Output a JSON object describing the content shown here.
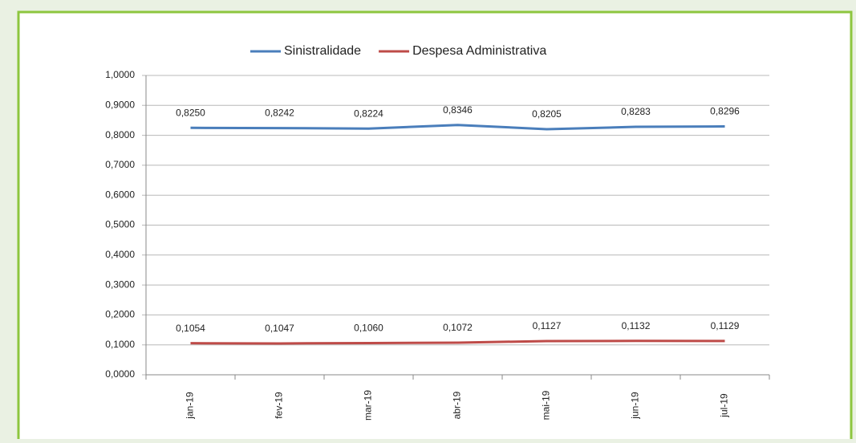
{
  "chart_data": {
    "type": "line",
    "categories": [
      "jan-19",
      "fev-19",
      "mar-19",
      "abr-19",
      "mai-19",
      "jun-19",
      "jul-19"
    ],
    "series": [
      {
        "name": "Sinistralidade",
        "color": "#4a7ebb",
        "values": [
          0.825,
          0.8242,
          0.8224,
          0.8346,
          0.8205,
          0.8283,
          0.8296
        ],
        "value_labels": [
          "0,8250",
          "0,8242",
          "0,8224",
          "0,8346",
          "0,8205",
          "0,8283",
          "0,8296"
        ]
      },
      {
        "name": "Despesa Administrativa",
        "color": "#be4b48",
        "values": [
          0.1054,
          0.1047,
          0.106,
          0.1072,
          0.1127,
          0.1132,
          0.1129
        ],
        "value_labels": [
          "0,1054",
          "0,1047",
          "0,1060",
          "0,1072",
          "0,1127",
          "0,1132",
          "0,1129"
        ]
      }
    ],
    "ylim": [
      0,
      1
    ],
    "yticks": [
      {
        "value": 0,
        "label": "0,0000"
      },
      {
        "value": 0.1,
        "label": "0,1000"
      },
      {
        "value": 0.2,
        "label": "0,2000"
      },
      {
        "value": 0.3,
        "label": "0,3000"
      },
      {
        "value": 0.4,
        "label": "0,4000"
      },
      {
        "value": 0.5,
        "label": "0,5000"
      },
      {
        "value": 0.6,
        "label": "0,6000"
      },
      {
        "value": 0.7,
        "label": "0,7000"
      },
      {
        "value": 0.8,
        "label": "0,8000"
      },
      {
        "value": 0.9,
        "label": "0,9000"
      },
      {
        "value": 1,
        "label": "1,0000"
      }
    ],
    "grid": true,
    "legend": "top"
  }
}
